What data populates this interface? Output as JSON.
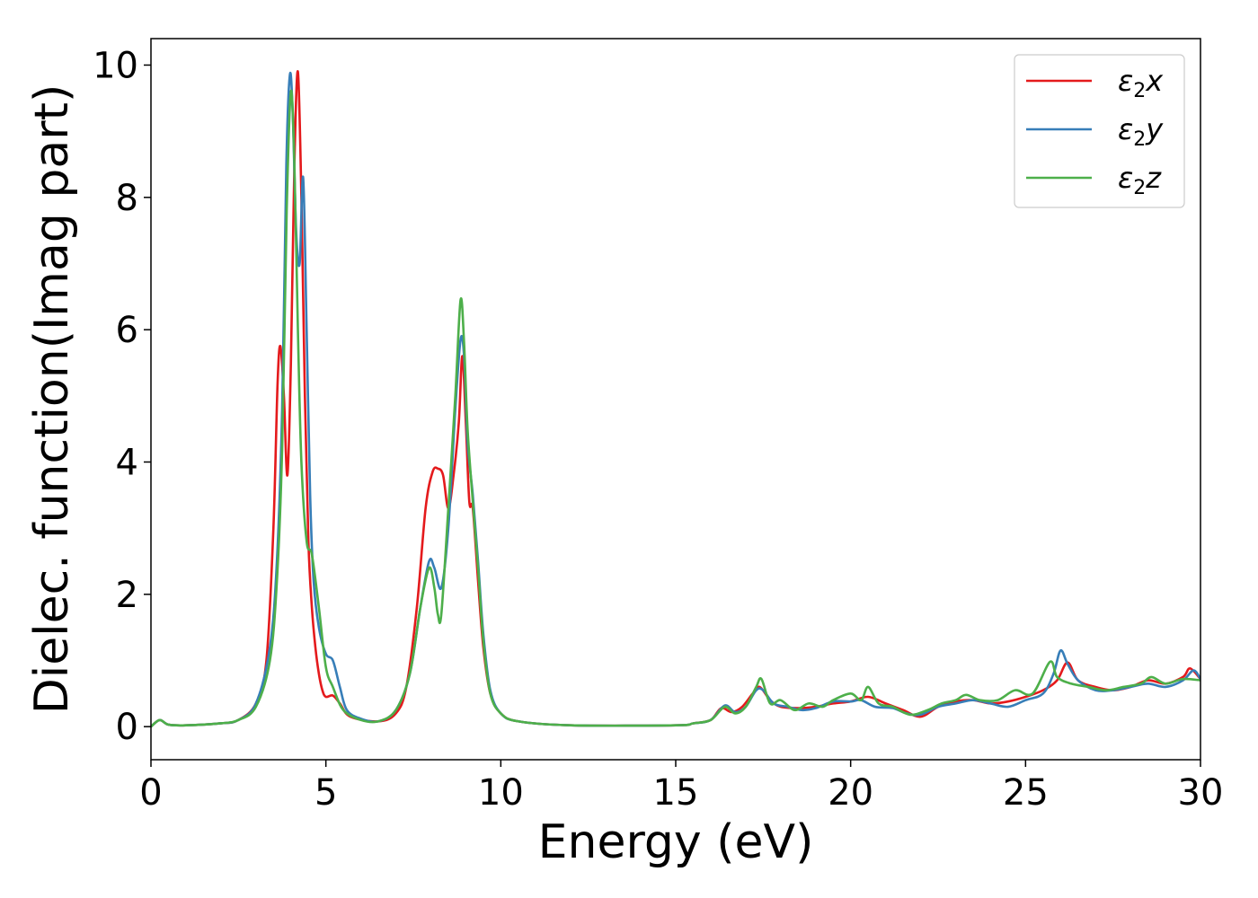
{
  "chart_data": {
    "type": "line",
    "xlabel": "Energy (eV)",
    "ylabel": "Dielec. function(Imag part)",
    "xlim": [
      0,
      30
    ],
    "ylim": [
      -0.5,
      10.4
    ],
    "xticks": [
      0,
      5,
      10,
      15,
      20,
      25,
      30
    ],
    "yticks": [
      0,
      2,
      4,
      6,
      8,
      10
    ],
    "grid": false,
    "legend_position": "top-right",
    "series": [
      {
        "name": "ε2x",
        "legend": {
          "base": "ε",
          "sub": "2",
          "suffix": "x"
        },
        "color": "#e41a1c",
        "points": [
          [
            0,
            0
          ],
          [
            0.25,
            0.1
          ],
          [
            0.5,
            0.03
          ],
          [
            1,
            0.02
          ],
          [
            2,
            0.05
          ],
          [
            2.5,
            0.1
          ],
          [
            3,
            0.35
          ],
          [
            3.3,
            1.0
          ],
          [
            3.5,
            3.0
          ],
          [
            3.62,
            5.2
          ],
          [
            3.7,
            5.75
          ],
          [
            3.8,
            5.0
          ],
          [
            3.9,
            3.8
          ],
          [
            4.0,
            5.5
          ],
          [
            4.1,
            8.5
          ],
          [
            4.2,
            9.9
          ],
          [
            4.3,
            8.0
          ],
          [
            4.4,
            5.0
          ],
          [
            4.5,
            2.8
          ],
          [
            4.6,
            1.8
          ],
          [
            4.7,
            1.2
          ],
          [
            4.8,
            0.8
          ],
          [
            4.9,
            0.55
          ],
          [
            5.0,
            0.45
          ],
          [
            5.2,
            0.47
          ],
          [
            5.4,
            0.35
          ],
          [
            5.7,
            0.15
          ],
          [
            6.5,
            0.08
          ],
          [
            7.0,
            0.2
          ],
          [
            7.3,
            0.6
          ],
          [
            7.6,
            1.8
          ],
          [
            7.85,
            3.3
          ],
          [
            8.05,
            3.85
          ],
          [
            8.2,
            3.9
          ],
          [
            8.35,
            3.8
          ],
          [
            8.5,
            3.3
          ],
          [
            8.65,
            3.8
          ],
          [
            8.8,
            4.6
          ],
          [
            8.9,
            5.6
          ],
          [
            9.0,
            4.6
          ],
          [
            9.1,
            3.4
          ],
          [
            9.2,
            3.3
          ],
          [
            9.35,
            2.2
          ],
          [
            9.5,
            1.2
          ],
          [
            9.7,
            0.5
          ],
          [
            10,
            0.2
          ],
          [
            10.5,
            0.08
          ],
          [
            12,
            0.02
          ],
          [
            15,
            0.02
          ],
          [
            15.5,
            0.05
          ],
          [
            16,
            0.1
          ],
          [
            16.3,
            0.28
          ],
          [
            16.6,
            0.22
          ],
          [
            16.9,
            0.3
          ],
          [
            17.2,
            0.5
          ],
          [
            17.4,
            0.6
          ],
          [
            17.7,
            0.4
          ],
          [
            18,
            0.3
          ],
          [
            18.5,
            0.28
          ],
          [
            19,
            0.3
          ],
          [
            19.5,
            0.35
          ],
          [
            20,
            0.38
          ],
          [
            20.5,
            0.45
          ],
          [
            21,
            0.35
          ],
          [
            21.5,
            0.25
          ],
          [
            22,
            0.15
          ],
          [
            22.5,
            0.3
          ],
          [
            23,
            0.38
          ],
          [
            23.5,
            0.4
          ],
          [
            24,
            0.35
          ],
          [
            24.5,
            0.38
          ],
          [
            25,
            0.45
          ],
          [
            25.5,
            0.55
          ],
          [
            25.9,
            0.7
          ],
          [
            26.2,
            0.97
          ],
          [
            26.5,
            0.7
          ],
          [
            27,
            0.6
          ],
          [
            27.5,
            0.55
          ],
          [
            28,
            0.6
          ],
          [
            28.5,
            0.7
          ],
          [
            29,
            0.65
          ],
          [
            29.5,
            0.75
          ],
          [
            29.7,
            0.88
          ],
          [
            30,
            0.72
          ]
        ]
      },
      {
        "name": "ε2y",
        "legend": {
          "base": "ε",
          "sub": "2",
          "suffix": "y"
        },
        "color": "#377eb8",
        "points": [
          [
            0,
            0
          ],
          [
            0.25,
            0.1
          ],
          [
            0.5,
            0.03
          ],
          [
            1,
            0.02
          ],
          [
            2,
            0.05
          ],
          [
            2.5,
            0.1
          ],
          [
            3,
            0.35
          ],
          [
            3.4,
            1.2
          ],
          [
            3.6,
            2.5
          ],
          [
            3.75,
            4.8
          ],
          [
            3.87,
            8.5
          ],
          [
            3.97,
            9.85
          ],
          [
            4.05,
            9.3
          ],
          [
            4.15,
            7.5
          ],
          [
            4.25,
            7.0
          ],
          [
            4.35,
            8.3
          ],
          [
            4.45,
            6.0
          ],
          [
            4.55,
            3.5
          ],
          [
            4.65,
            2.2
          ],
          [
            4.8,
            1.5
          ],
          [
            5.0,
            1.1
          ],
          [
            5.2,
            1.0
          ],
          [
            5.4,
            0.6
          ],
          [
            5.6,
            0.25
          ],
          [
            6.0,
            0.12
          ],
          [
            6.5,
            0.08
          ],
          [
            7.0,
            0.25
          ],
          [
            7.4,
            0.8
          ],
          [
            7.7,
            1.8
          ],
          [
            7.95,
            2.5
          ],
          [
            8.1,
            2.4
          ],
          [
            8.3,
            2.1
          ],
          [
            8.5,
            3.0
          ],
          [
            8.7,
            4.8
          ],
          [
            8.85,
            5.85
          ],
          [
            8.95,
            5.6
          ],
          [
            9.05,
            4.3
          ],
          [
            9.2,
            3.5
          ],
          [
            9.35,
            2.5
          ],
          [
            9.5,
            1.4
          ],
          [
            9.7,
            0.55
          ],
          [
            10,
            0.2
          ],
          [
            10.5,
            0.08
          ],
          [
            12,
            0.02
          ],
          [
            15,
            0.02
          ],
          [
            15.5,
            0.05
          ],
          [
            16,
            0.1
          ],
          [
            16.4,
            0.32
          ],
          [
            16.7,
            0.22
          ],
          [
            17.0,
            0.3
          ],
          [
            17.3,
            0.55
          ],
          [
            17.5,
            0.55
          ],
          [
            17.8,
            0.35
          ],
          [
            18.2,
            0.3
          ],
          [
            18.6,
            0.25
          ],
          [
            19.0,
            0.28
          ],
          [
            19.5,
            0.38
          ],
          [
            20,
            0.38
          ],
          [
            20.3,
            0.4
          ],
          [
            20.7,
            0.3
          ],
          [
            21.2,
            0.28
          ],
          [
            21.6,
            0.2
          ],
          [
            22,
            0.18
          ],
          [
            22.5,
            0.3
          ],
          [
            23,
            0.35
          ],
          [
            23.5,
            0.4
          ],
          [
            24,
            0.35
          ],
          [
            24.5,
            0.3
          ],
          [
            25,
            0.4
          ],
          [
            25.5,
            0.5
          ],
          [
            25.8,
            0.8
          ],
          [
            26.0,
            1.15
          ],
          [
            26.2,
            0.95
          ],
          [
            26.5,
            0.7
          ],
          [
            27,
            0.55
          ],
          [
            27.5,
            0.55
          ],
          [
            28,
            0.6
          ],
          [
            28.5,
            0.65
          ],
          [
            29,
            0.6
          ],
          [
            29.5,
            0.7
          ],
          [
            29.8,
            0.85
          ],
          [
            30,
            0.72
          ]
        ]
      },
      {
        "name": "ε2z",
        "legend": {
          "base": "ε",
          "sub": "2",
          "suffix": "z"
        },
        "color": "#4daf4a",
        "points": [
          [
            0,
            0
          ],
          [
            0.25,
            0.1
          ],
          [
            0.5,
            0.03
          ],
          [
            1,
            0.02
          ],
          [
            2,
            0.05
          ],
          [
            2.5,
            0.1
          ],
          [
            3,
            0.3
          ],
          [
            3.4,
            1.0
          ],
          [
            3.6,
            2.2
          ],
          [
            3.75,
            4.2
          ],
          [
            3.88,
            7.8
          ],
          [
            4.0,
            9.6
          ],
          [
            4.1,
            8.5
          ],
          [
            4.2,
            6.0
          ],
          [
            4.3,
            4.0
          ],
          [
            4.45,
            2.8
          ],
          [
            4.6,
            2.6
          ],
          [
            4.8,
            1.8
          ],
          [
            5.0,
            0.9
          ],
          [
            5.2,
            0.6
          ],
          [
            5.5,
            0.25
          ],
          [
            6.0,
            0.1
          ],
          [
            6.5,
            0.08
          ],
          [
            7.0,
            0.25
          ],
          [
            7.4,
            0.8
          ],
          [
            7.7,
            1.8
          ],
          [
            7.95,
            2.4
          ],
          [
            8.1,
            2.1
          ],
          [
            8.2,
            1.7
          ],
          [
            8.3,
            1.7
          ],
          [
            8.5,
            3.3
          ],
          [
            8.7,
            5.0
          ],
          [
            8.85,
            6.45
          ],
          [
            8.95,
            5.8
          ],
          [
            9.05,
            4.5
          ],
          [
            9.2,
            3.4
          ],
          [
            9.35,
            2.4
          ],
          [
            9.5,
            1.3
          ],
          [
            9.7,
            0.5
          ],
          [
            10,
            0.2
          ],
          [
            10.5,
            0.08
          ],
          [
            12,
            0.02
          ],
          [
            15,
            0.02
          ],
          [
            15.5,
            0.05
          ],
          [
            16,
            0.1
          ],
          [
            16.4,
            0.3
          ],
          [
            16.7,
            0.2
          ],
          [
            17.0,
            0.3
          ],
          [
            17.3,
            0.6
          ],
          [
            17.45,
            0.72
          ],
          [
            17.7,
            0.35
          ],
          [
            18.0,
            0.4
          ],
          [
            18.4,
            0.25
          ],
          [
            18.8,
            0.35
          ],
          [
            19.2,
            0.3
          ],
          [
            19.5,
            0.4
          ],
          [
            20.0,
            0.5
          ],
          [
            20.3,
            0.4
          ],
          [
            20.5,
            0.6
          ],
          [
            20.8,
            0.35
          ],
          [
            21.2,
            0.3
          ],
          [
            21.7,
            0.18
          ],
          [
            22.2,
            0.25
          ],
          [
            22.6,
            0.35
          ],
          [
            23.0,
            0.4
          ],
          [
            23.3,
            0.48
          ],
          [
            23.7,
            0.4
          ],
          [
            24.2,
            0.4
          ],
          [
            24.7,
            0.55
          ],
          [
            25.2,
            0.5
          ],
          [
            25.7,
            0.98
          ],
          [
            25.9,
            0.75
          ],
          [
            26.3,
            0.65
          ],
          [
            26.8,
            0.6
          ],
          [
            27.3,
            0.55
          ],
          [
            27.8,
            0.6
          ],
          [
            28.3,
            0.65
          ],
          [
            28.6,
            0.75
          ],
          [
            29.0,
            0.65
          ],
          [
            29.5,
            0.72
          ],
          [
            30,
            0.7
          ]
        ]
      }
    ]
  }
}
